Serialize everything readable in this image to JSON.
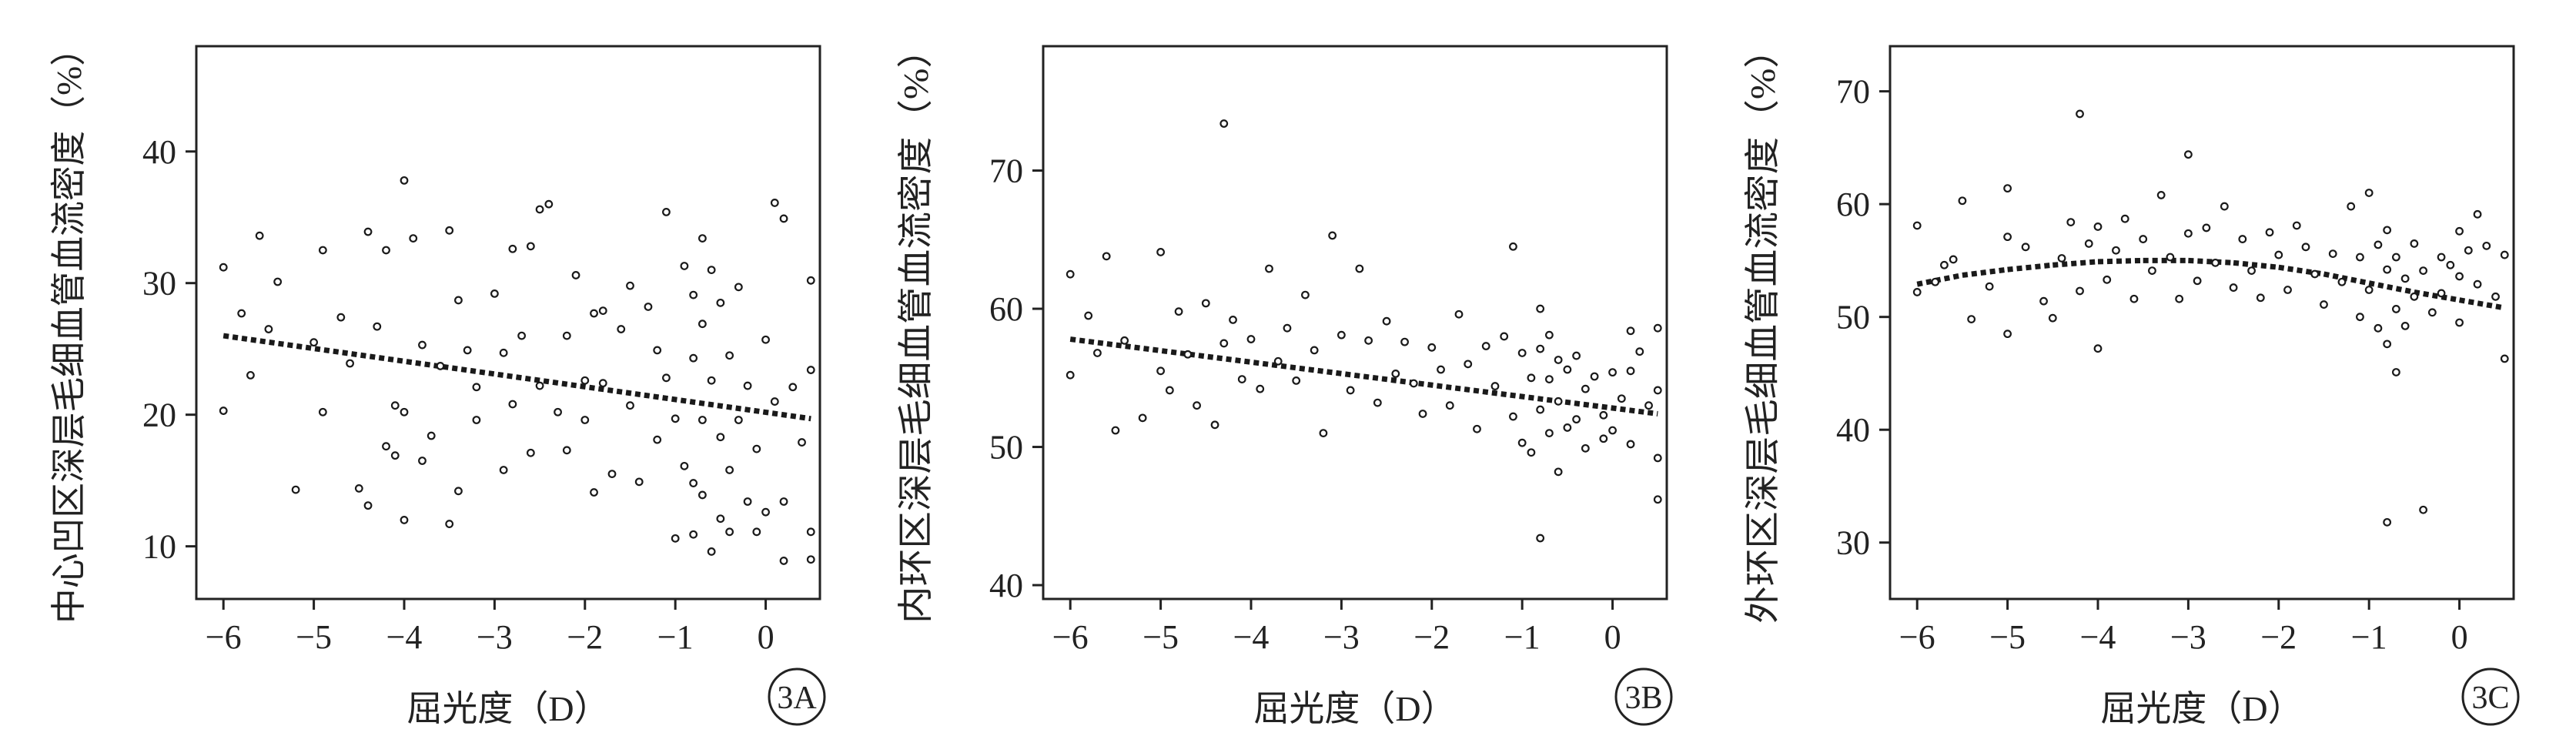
{
  "chart_data": [
    {
      "type": "scatter",
      "panel_label": "3A",
      "xlabel": "屈光度（D）",
      "ylabel": "中心凹区深层毛细血管血流密度（%）",
      "xlim": [
        -6.3,
        0.6
      ],
      "ylim": [
        6,
        48
      ],
      "xticks": [
        -6,
        -5,
        -4,
        -3,
        -2,
        -1,
        0
      ],
      "xtick_labels": [
        "−6",
        "−5",
        "−4",
        "−3",
        "−2",
        "−1",
        "0"
      ],
      "yticks": [
        10,
        20,
        30,
        40
      ],
      "yticks_labels": [
        "10",
        "20",
        "30",
        "40"
      ],
      "points": [
        [
          -6.0,
          31.2
        ],
        [
          -6.0,
          20.3
        ],
        [
          -5.8,
          27.7
        ],
        [
          -5.7,
          23.0
        ],
        [
          -5.6,
          33.6
        ],
        [
          -5.5,
          26.5
        ],
        [
          -5.4,
          30.1
        ],
        [
          -5.2,
          14.3
        ],
        [
          -5.0,
          25.5
        ],
        [
          -4.9,
          32.5
        ],
        [
          -4.9,
          20.2
        ],
        [
          -4.7,
          27.4
        ],
        [
          -4.6,
          23.9
        ],
        [
          -4.5,
          14.4
        ],
        [
          -4.4,
          33.9
        ],
        [
          -4.4,
          13.1
        ],
        [
          -4.3,
          26.7
        ],
        [
          -4.2,
          32.5
        ],
        [
          -4.2,
          17.6
        ],
        [
          -4.1,
          20.7
        ],
        [
          -4.1,
          16.9
        ],
        [
          -4.0,
          37.8
        ],
        [
          -4.0,
          20.2
        ],
        [
          -4.0,
          12.0
        ],
        [
          -3.9,
          33.4
        ],
        [
          -3.8,
          25.3
        ],
        [
          -3.8,
          16.5
        ],
        [
          -3.7,
          18.4
        ],
        [
          -3.6,
          23.7
        ],
        [
          -3.5,
          34.0
        ],
        [
          -3.5,
          11.7
        ],
        [
          -3.4,
          28.7
        ],
        [
          -3.4,
          14.2
        ],
        [
          -3.3,
          24.9
        ],
        [
          -3.2,
          22.1
        ],
        [
          -3.2,
          19.6
        ],
        [
          -3.0,
          29.2
        ],
        [
          -2.9,
          24.7
        ],
        [
          -2.9,
          15.8
        ],
        [
          -2.8,
          32.6
        ],
        [
          -2.8,
          20.8
        ],
        [
          -2.7,
          26.0
        ],
        [
          -2.6,
          32.8
        ],
        [
          -2.6,
          17.1
        ],
        [
          -2.5,
          35.6
        ],
        [
          -2.5,
          22.2
        ],
        [
          -2.4,
          36.0
        ],
        [
          -2.3,
          20.2
        ],
        [
          -2.2,
          26.0
        ],
        [
          -2.2,
          17.3
        ],
        [
          -2.1,
          30.6
        ],
        [
          -2.0,
          22.6
        ],
        [
          -2.0,
          19.6
        ],
        [
          -1.9,
          27.7
        ],
        [
          -1.9,
          14.1
        ],
        [
          -1.8,
          27.9
        ],
        [
          -1.8,
          22.4
        ],
        [
          -1.7,
          15.5
        ],
        [
          -1.6,
          26.5
        ],
        [
          -1.5,
          29.8
        ],
        [
          -1.5,
          20.7
        ],
        [
          -1.4,
          14.9
        ],
        [
          -1.3,
          28.2
        ],
        [
          -1.2,
          24.9
        ],
        [
          -1.2,
          18.1
        ],
        [
          -1.1,
          35.4
        ],
        [
          -1.1,
          22.8
        ],
        [
          -1.0,
          19.7
        ],
        [
          -1.0,
          10.6
        ],
        [
          -0.9,
          31.3
        ],
        [
          -0.9,
          16.1
        ],
        [
          -0.8,
          29.1
        ],
        [
          -0.8,
          24.3
        ],
        [
          -0.8,
          14.8
        ],
        [
          -0.8,
          10.9
        ],
        [
          -0.7,
          33.4
        ],
        [
          -0.7,
          26.9
        ],
        [
          -0.7,
          19.6
        ],
        [
          -0.7,
          13.9
        ],
        [
          -0.6,
          31.0
        ],
        [
          -0.6,
          22.6
        ],
        [
          -0.6,
          9.6
        ],
        [
          -0.5,
          28.5
        ],
        [
          -0.5,
          18.3
        ],
        [
          -0.5,
          12.1
        ],
        [
          -0.4,
          24.5
        ],
        [
          -0.4,
          15.8
        ],
        [
          -0.4,
          11.1
        ],
        [
          -0.3,
          29.7
        ],
        [
          -0.3,
          19.6
        ],
        [
          -0.2,
          22.2
        ],
        [
          -0.2,
          13.4
        ],
        [
          -0.1,
          17.4
        ],
        [
          -0.1,
          11.1
        ],
        [
          0.0,
          25.7
        ],
        [
          0.0,
          12.6
        ],
        [
          0.1,
          36.1
        ],
        [
          0.1,
          21.0
        ],
        [
          0.2,
          34.9
        ],
        [
          0.2,
          13.4
        ],
        [
          0.2,
          8.9
        ],
        [
          0.3,
          22.1
        ],
        [
          0.4,
          17.9
        ],
        [
          0.5,
          30.2
        ],
        [
          0.5,
          23.4
        ],
        [
          0.5,
          11.1
        ],
        [
          0.5,
          9.0
        ]
      ],
      "fit_line": {
        "x": [
          -6.0,
          0.5
        ],
        "y": [
          26.0,
          19.7
        ]
      }
    },
    {
      "type": "scatter",
      "panel_label": "3B",
      "xlabel": "屈光度（D）",
      "ylabel": "内环区深层毛细血管血流密度（%）",
      "xlim": [
        -6.3,
        0.6
      ],
      "ylim": [
        39,
        79
      ],
      "xticks": [
        -6,
        -5,
        -4,
        -3,
        -2,
        -1,
        0
      ],
      "xtick_labels": [
        "−6",
        "−5",
        "−4",
        "−3",
        "−2",
        "−1",
        "0"
      ],
      "yticks": [
        40,
        50,
        60,
        70
      ],
      "yticks_labels": [
        "40",
        "50",
        "60",
        "70"
      ],
      "points": [
        [
          -6.0,
          62.5
        ],
        [
          -6.0,
          55.2
        ],
        [
          -5.8,
          59.5
        ],
        [
          -5.7,
          56.8
        ],
        [
          -5.6,
          63.8
        ],
        [
          -5.5,
          51.2
        ],
        [
          -5.4,
          57.7
        ],
        [
          -5.2,
          52.1
        ],
        [
          -5.0,
          64.1
        ],
        [
          -5.0,
          55.5
        ],
        [
          -4.9,
          54.1
        ],
        [
          -4.8,
          59.8
        ],
        [
          -4.7,
          56.7
        ],
        [
          -4.6,
          53.0
        ],
        [
          -4.5,
          60.4
        ],
        [
          -4.4,
          51.6
        ],
        [
          -4.3,
          73.4
        ],
        [
          -4.3,
          57.5
        ],
        [
          -4.2,
          59.2
        ],
        [
          -4.1,
          54.9
        ],
        [
          -4.0,
          57.8
        ],
        [
          -3.9,
          54.2
        ],
        [
          -3.8,
          62.9
        ],
        [
          -3.7,
          56.2
        ],
        [
          -3.6,
          58.6
        ],
        [
          -3.5,
          54.8
        ],
        [
          -3.4,
          61.0
        ],
        [
          -3.3,
          57.0
        ],
        [
          -3.2,
          51.0
        ],
        [
          -3.1,
          65.3
        ],
        [
          -3.0,
          58.1
        ],
        [
          -2.9,
          54.1
        ],
        [
          -2.8,
          62.9
        ],
        [
          -2.7,
          57.7
        ],
        [
          -2.6,
          53.2
        ],
        [
          -2.5,
          59.1
        ],
        [
          -2.4,
          55.3
        ],
        [
          -2.3,
          57.6
        ],
        [
          -2.2,
          54.6
        ],
        [
          -2.1,
          52.4
        ],
        [
          -2.0,
          57.2
        ],
        [
          -1.9,
          55.6
        ],
        [
          -1.8,
          53.0
        ],
        [
          -1.7,
          59.6
        ],
        [
          -1.6,
          56.0
        ],
        [
          -1.5,
          51.3
        ],
        [
          -1.4,
          57.3
        ],
        [
          -1.3,
          54.4
        ],
        [
          -1.2,
          58.0
        ],
        [
          -1.1,
          64.5
        ],
        [
          -1.1,
          52.2
        ],
        [
          -1.0,
          56.8
        ],
        [
          -1.0,
          50.3
        ],
        [
          -0.9,
          55.0
        ],
        [
          -0.9,
          49.6
        ],
        [
          -0.8,
          60.0
        ],
        [
          -0.8,
          57.1
        ],
        [
          -0.8,
          52.7
        ],
        [
          -0.8,
          43.4
        ],
        [
          -0.7,
          58.1
        ],
        [
          -0.7,
          54.9
        ],
        [
          -0.7,
          51.0
        ],
        [
          -0.6,
          56.3
        ],
        [
          -0.6,
          53.3
        ],
        [
          -0.6,
          48.2
        ],
        [
          -0.5,
          55.6
        ],
        [
          -0.5,
          51.4
        ],
        [
          -0.4,
          56.6
        ],
        [
          -0.4,
          52.0
        ],
        [
          -0.3,
          54.2
        ],
        [
          -0.3,
          49.9
        ],
        [
          -0.2,
          55.1
        ],
        [
          -0.1,
          52.3
        ],
        [
          -0.1,
          50.6
        ],
        [
          0.0,
          55.4
        ],
        [
          0.0,
          51.2
        ],
        [
          0.1,
          53.5
        ],
        [
          0.2,
          58.4
        ],
        [
          0.2,
          55.5
        ],
        [
          0.2,
          50.2
        ],
        [
          0.3,
          56.9
        ],
        [
          0.4,
          53.0
        ],
        [
          0.5,
          58.6
        ],
        [
          0.5,
          54.1
        ],
        [
          0.5,
          49.2
        ],
        [
          0.5,
          46.2
        ]
      ],
      "fit_line": {
        "x": [
          -6.0,
          0.5
        ],
        "y": [
          57.8,
          52.4
        ]
      }
    },
    {
      "type": "scatter",
      "panel_label": "3C",
      "xlabel": "屈光度（D）",
      "ylabel": "外环区深层毛细血管血流密度（%）",
      "xlim": [
        -6.3,
        0.6
      ],
      "ylim": [
        25,
        74
      ],
      "xticks": [
        -6,
        -5,
        -4,
        -3,
        -2,
        -1,
        0
      ],
      "xtick_labels": [
        "−6",
        "−5",
        "−4",
        "−3",
        "−2",
        "−1",
        "0"
      ],
      "yticks": [
        30,
        40,
        50,
        60,
        70
      ],
      "yticks_labels": [
        "30",
        "40",
        "50",
        "60",
        "70"
      ],
      "points": [
        [
          -6.0,
          58.1
        ],
        [
          -6.0,
          52.2
        ],
        [
          -5.8,
          53.1
        ],
        [
          -5.7,
          54.6
        ],
        [
          -5.6,
          55.1
        ],
        [
          -5.5,
          60.3
        ],
        [
          -5.4,
          49.8
        ],
        [
          -5.2,
          52.7
        ],
        [
          -5.0,
          61.4
        ],
        [
          -5.0,
          57.1
        ],
        [
          -5.0,
          48.5
        ],
        [
          -4.8,
          56.2
        ],
        [
          -4.6,
          51.4
        ],
        [
          -4.5,
          49.9
        ],
        [
          -4.4,
          55.2
        ],
        [
          -4.3,
          58.4
        ],
        [
          -4.2,
          68.0
        ],
        [
          -4.2,
          52.3
        ],
        [
          -4.1,
          56.5
        ],
        [
          -4.0,
          58.0
        ],
        [
          -4.0,
          47.2
        ],
        [
          -3.9,
          53.3
        ],
        [
          -3.8,
          55.9
        ],
        [
          -3.7,
          58.7
        ],
        [
          -3.6,
          51.6
        ],
        [
          -3.5,
          56.9
        ],
        [
          -3.4,
          54.1
        ],
        [
          -3.3,
          60.8
        ],
        [
          -3.2,
          55.3
        ],
        [
          -3.1,
          51.6
        ],
        [
          -3.0,
          64.4
        ],
        [
          -3.0,
          57.4
        ],
        [
          -2.9,
          53.2
        ],
        [
          -2.8,
          57.9
        ],
        [
          -2.7,
          54.8
        ],
        [
          -2.6,
          59.8
        ],
        [
          -2.5,
          52.6
        ],
        [
          -2.4,
          56.9
        ],
        [
          -2.3,
          54.1
        ],
        [
          -2.2,
          51.7
        ],
        [
          -2.1,
          57.5
        ],
        [
          -2.0,
          55.5
        ],
        [
          -1.9,
          52.4
        ],
        [
          -1.8,
          58.1
        ],
        [
          -1.7,
          56.2
        ],
        [
          -1.6,
          53.8
        ],
        [
          -1.5,
          51.1
        ],
        [
          -1.4,
          55.6
        ],
        [
          -1.3,
          53.1
        ],
        [
          -1.2,
          59.8
        ],
        [
          -1.1,
          55.3
        ],
        [
          -1.1,
          50.0
        ],
        [
          -1.0,
          61.0
        ],
        [
          -1.0,
          52.4
        ],
        [
          -0.9,
          56.4
        ],
        [
          -0.9,
          49.0
        ],
        [
          -0.8,
          57.7
        ],
        [
          -0.8,
          54.2
        ],
        [
          -0.8,
          47.6
        ],
        [
          -0.8,
          31.8
        ],
        [
          -0.7,
          55.3
        ],
        [
          -0.7,
          50.7
        ],
        [
          -0.7,
          45.1
        ],
        [
          -0.6,
          53.4
        ],
        [
          -0.6,
          49.2
        ],
        [
          -0.5,
          56.5
        ],
        [
          -0.5,
          51.8
        ],
        [
          -0.4,
          54.1
        ],
        [
          -0.4,
          32.9
        ],
        [
          -0.3,
          50.4
        ],
        [
          -0.2,
          55.3
        ],
        [
          -0.2,
          52.1
        ],
        [
          -0.1,
          54.6
        ],
        [
          0.0,
          57.6
        ],
        [
          0.0,
          53.6
        ],
        [
          0.0,
          49.5
        ],
        [
          0.1,
          55.9
        ],
        [
          0.2,
          59.1
        ],
        [
          0.2,
          52.9
        ],
        [
          0.3,
          56.3
        ],
        [
          0.4,
          51.8
        ],
        [
          0.5,
          55.5
        ],
        [
          0.5,
          46.3
        ]
      ],
      "fit_line": {
        "x": [
          -6.0,
          -5.5,
          -5.0,
          -4.5,
          -4.0,
          -3.5,
          -3.0,
          -2.5,
          -2.0,
          -1.5,
          -1.0,
          -0.5,
          0.0,
          0.5
        ],
        "y": [
          52.9,
          53.7,
          54.2,
          54.6,
          54.9,
          55.0,
          55.0,
          54.8,
          54.4,
          53.8,
          53.0,
          52.2,
          51.5,
          50.8
        ]
      }
    }
  ]
}
